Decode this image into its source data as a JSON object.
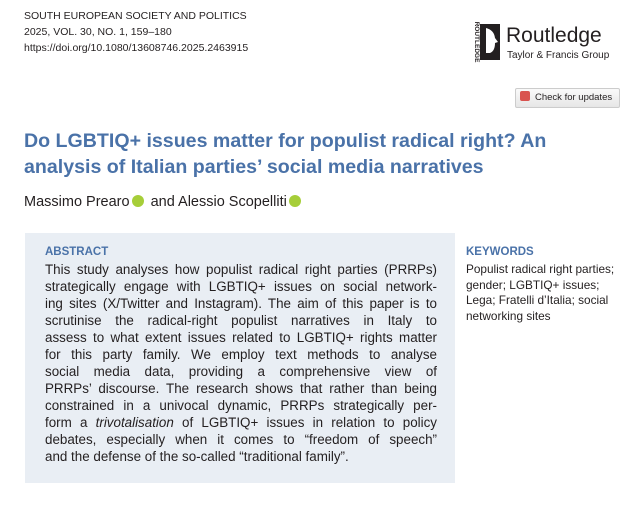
{
  "header": {
    "journal": "SOUTH EUROPEAN SOCIETY AND POLITICS",
    "issue": "2025, VOL. 30, NO. 1, 159–180",
    "doi": "https://doi.org/10.1080/13608746.2025.2463915"
  },
  "publisher": {
    "name": "Routledge",
    "group": "Taylor & Francis Group",
    "side_label": "ROUTLEDGE"
  },
  "check_updates": "Check for updates",
  "title": {
    "lines": [
      "Do LGBTIQ+ issues matter for populist radical right? An",
      "analysis of Italian parties’ social media narratives"
    ]
  },
  "authors": {
    "first": "Massimo Prearo",
    "joiner": "and",
    "second": "Alessio Scopelliti"
  },
  "abstract": {
    "heading": "ABSTRACT",
    "lines": [
      "This study analyses how populist radical right parties (PRRPs)",
      "strategically engage with LGBTIQ+ issues on social network-",
      "ing sites (X/Twitter and Instagram). The aim of this paper is to",
      "scrutinise the radical-right populist narratives in Italy to",
      "assess to what extent issues related to LGBTIQ+ rights matter",
      "for this party family. We employ text methods to analyse",
      "social media data, providing a comprehensive view of",
      "PRRPs’ discourse. The research shows that rather than being",
      "constrained in a univocal dynamic, PRRPs strategically per-",
      {
        "before": "form a ",
        "emphasis": "trivotalisation",
        "after": " of LGBTIQ+ issues in relation to policy"
      },
      "debates, especially when it comes to “freedom of speech”",
      "and the defense of the so-called “traditional family”."
    ]
  },
  "keywords": {
    "heading": "KEYWORDS",
    "lines": [
      "Populist radical right parties;",
      "gender; LGBTIQ+ issues;",
      "Lega; Fratelli d’Italia; social",
      "networking sites"
    ]
  }
}
